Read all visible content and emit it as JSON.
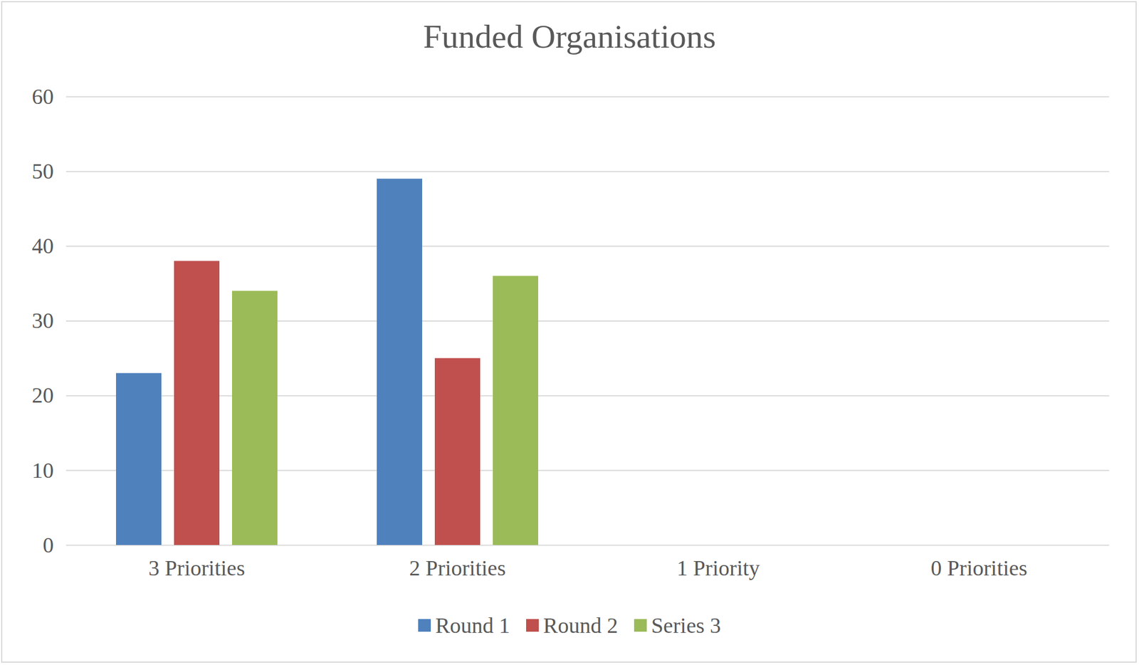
{
  "chart_data": {
    "type": "bar",
    "title": "Funded Organisations",
    "categories": [
      "3 Priorities",
      "2 Priorities",
      "1 Priority",
      "0 Priorities"
    ],
    "series": [
      {
        "name": "Round 1",
        "color": "#4f81bd",
        "values": [
          23,
          49,
          0,
          0
        ]
      },
      {
        "name": "Round 2",
        "color": "#c0504d",
        "values": [
          38,
          25,
          0,
          0
        ]
      },
      {
        "name": "Series 3",
        "color": "#9bbb59",
        "values": [
          34,
          36,
          0,
          0
        ]
      }
    ],
    "ylim": [
      0,
      60
    ],
    "yticks": [
      0,
      10,
      20,
      30,
      40,
      50,
      60
    ],
    "grid": true,
    "legend": "bottom"
  }
}
